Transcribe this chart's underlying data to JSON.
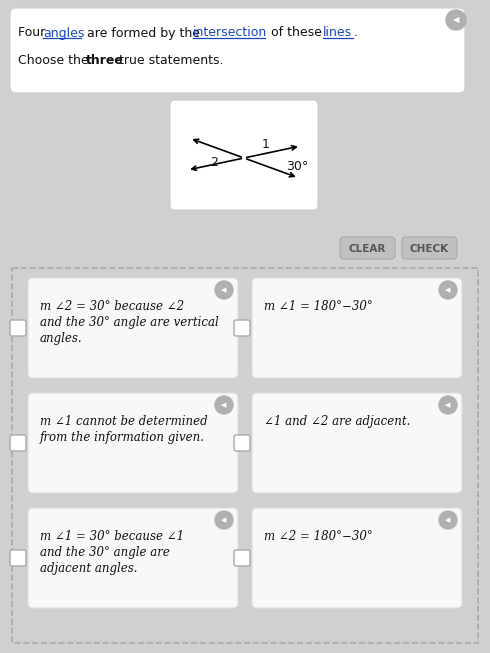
{
  "title_line1": "Four ",
  "title_angles": "angles",
  "title_mid": " are formed by the ",
  "title_intersection": "intersection",
  "title_end": " of these ",
  "title_lines": "lines",
  "title_dot": ".",
  "subtitle_pre": "Choose the ",
  "subtitle_bold": "three",
  "subtitle_post": " true statements.",
  "bg_color": "#d0d0d0",
  "top_box_color": "#ffffff",
  "diagram_box_color": "#ffffff",
  "card_bg": "#f0f0f0",
  "card_border": "#ffffff",
  "dashed_border": "#aaaaaa",
  "checkbox_color": "#ffffff",
  "speaker_color": "#888888",
  "clear_btn": "CLEAR",
  "check_btn": "CHECK",
  "card_texts": [
    "m ∠2 = 30° because ∠2\nand the 30° angle are vertical\nangles.",
    "m ∠1 = 180°−30°",
    "m ∠1 cannot be determined\nfrom the information given.",
    "∠1 and ∠2 are adjacent.",
    "m ∠1 = 30° because ∠1\nand the 30° angle are\nadjacent angles.",
    "m ∠2 = 180°−30°"
  ],
  "link_color": "#2255cc",
  "text_color": "#000000",
  "button_gray": "#c0c0c0",
  "button_text": "#555555"
}
